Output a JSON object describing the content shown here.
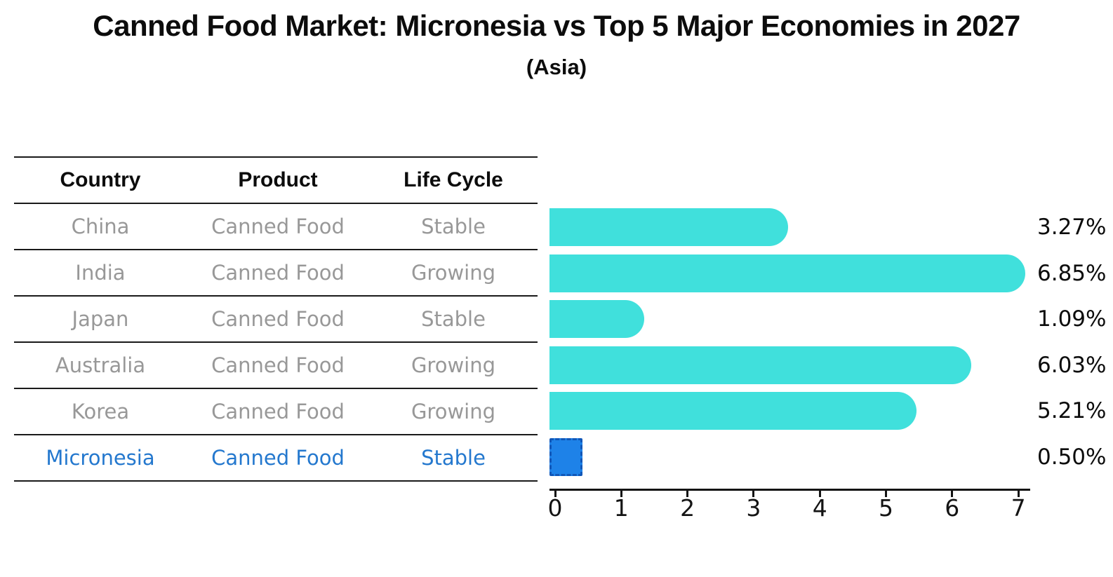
{
  "title": "Canned Food Market: Micronesia vs Top 5 Major Economies in 2027",
  "subtitle": "(Asia)",
  "table": {
    "headers": [
      "Country",
      "Product",
      "Life Cycle"
    ],
    "rows": [
      {
        "country": "China",
        "product": "Canned Food",
        "life_cycle": "Stable",
        "highlight": false
      },
      {
        "country": "India",
        "product": "Canned Food",
        "life_cycle": "Growing",
        "highlight": false
      },
      {
        "country": "Japan",
        "product": "Canned Food",
        "life_cycle": "Stable",
        "highlight": false
      },
      {
        "country": "Australia",
        "product": "Canned Food",
        "life_cycle": "Growing",
        "highlight": false
      },
      {
        "country": "Korea",
        "product": "Canned Food",
        "life_cycle": "Growing",
        "highlight": false
      },
      {
        "country": "Micronesia",
        "product": "Canned Food",
        "life_cycle": "Stable",
        "highlight": true
      }
    ]
  },
  "chart_data": {
    "type": "bar",
    "orientation": "horizontal",
    "categories": [
      "China",
      "India",
      "Japan",
      "Australia",
      "Korea",
      "Micronesia"
    ],
    "values": [
      3.27,
      6.85,
      1.09,
      6.03,
      5.21,
      0.5
    ],
    "value_labels": [
      "3.27%",
      "6.85%",
      "1.09%",
      "6.03%",
      "5.21%",
      "0.50%"
    ],
    "x_ticks": [
      0,
      1,
      2,
      3,
      4,
      5,
      6,
      7
    ],
    "xlim": [
      0,
      7.2
    ],
    "xlabel": "",
    "ylabel": "",
    "grid": false,
    "legend": "none",
    "bar_color": "#40e0dc",
    "highlight_color": "#1e82e8",
    "highlight_index": 5,
    "text_gray": "#989898",
    "highlight_text_color": "#2478ce"
  }
}
